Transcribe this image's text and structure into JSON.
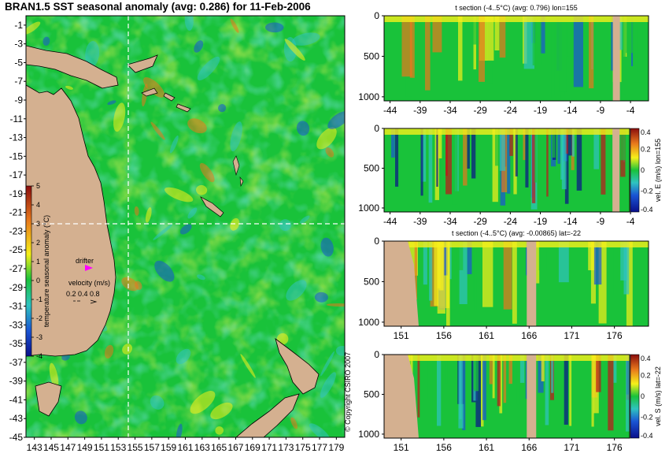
{
  "colors": {
    "land": "#d4b090",
    "sea_base": "#19c23a",
    "warm": "#f6f01a",
    "hot": "#e8781c",
    "cool": "#2fc3c0",
    "cold": "#1a55d4",
    "deep_cold": "#0a0f8a",
    "drifter": "#ff00ff"
  },
  "chart_data": [
    {
      "type": "heatmap",
      "title": "BRAN1.5 SST seasonal anomaly (avg: 0.286) for 11-Feb-2006",
      "x_ticks": [
        "143",
        "145",
        "147",
        "149",
        "151",
        "153",
        "155",
        "157",
        "159",
        "161",
        "163",
        "165",
        "167",
        "169",
        "171",
        "173",
        "175",
        "177",
        "179"
      ],
      "y_ticks": [
        "-1",
        "-3",
        "-5",
        "-7",
        "-9",
        "-11",
        "-13",
        "-15",
        "-17",
        "-19",
        "-21",
        "-23",
        "-25",
        "-27",
        "-29",
        "-31",
        "-33",
        "-35",
        "-37",
        "-39",
        "-41",
        "-43",
        "-45"
      ],
      "xlim": [
        142,
        180
      ],
      "ylim": [
        -45,
        0
      ],
      "crosshair": {
        "lon": 155,
        "lat": -22
      },
      "colorbar": {
        "label": "temperature seasonal anomaly (°C)",
        "ticks": [
          "5",
          "4",
          "3",
          "2",
          "1",
          "0",
          "-1",
          "-2",
          "-3",
          "-4"
        ],
        "range": [
          -4,
          5
        ]
      },
      "legend": {
        "drifter": "drifter",
        "velocity_title": "velocity (m/s)",
        "velocity_values": "0.2 0.4 0.8"
      },
      "copyright": "© Copyright CSIRO 2007"
    },
    {
      "type": "heatmap",
      "title": "t section (-4..5°C) (avg: 0.796) lon=155",
      "x_ticks": [
        "-44",
        "-39",
        "-34",
        "-29",
        "-24",
        "-19",
        "-14",
        "-9",
        "-4"
      ],
      "y_ticks": [
        "0",
        "500",
        "1000"
      ],
      "xlim": [
        -45,
        -1
      ],
      "ylim": [
        1050,
        0
      ]
    },
    {
      "type": "heatmap",
      "title": "",
      "x_ticks": [
        "-44",
        "-39",
        "-34",
        "-29",
        "-24",
        "-19",
        "-14",
        "-9",
        "-4"
      ],
      "y_ticks": [
        "0",
        "500",
        "1000"
      ],
      "xlim": [
        -45,
        -1
      ],
      "ylim": [
        1050,
        0
      ],
      "colorbar": {
        "label": "vel. E (m/s) lon=155",
        "ticks": [
          "0.4",
          "0.2",
          "0",
          "-0.2",
          "-0.4"
        ],
        "range": [
          -0.4,
          0.4
        ]
      }
    },
    {
      "type": "heatmap",
      "title": "t section (-4..5°C) (avg: -0.00865) lat=-22",
      "x_ticks": [
        "151",
        "156",
        "161",
        "166",
        "171",
        "176"
      ],
      "y_ticks": [
        "0",
        "500",
        "1000"
      ],
      "xlim": [
        149,
        180
      ],
      "ylim": [
        1050,
        0
      ]
    },
    {
      "type": "heatmap",
      "title": "",
      "x_ticks": [
        "151",
        "156",
        "161",
        "166",
        "171",
        "176"
      ],
      "y_ticks": [
        "0",
        "500",
        "1000"
      ],
      "xlim": [
        149,
        180
      ],
      "ylim": [
        1050,
        0
      ],
      "colorbar": {
        "label": "vel. S (m/s) lat=-22",
        "ticks": [
          "0.4",
          "0.2",
          "0",
          "-0.2",
          "-0.4"
        ],
        "range": [
          -0.4,
          0.4
        ]
      }
    }
  ]
}
